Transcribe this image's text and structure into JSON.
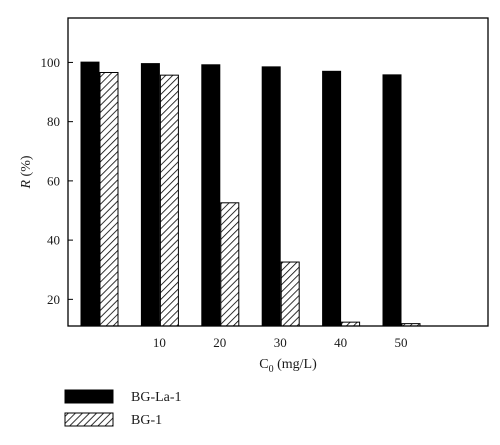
{
  "chart_data": {
    "type": "bar",
    "categories": [
      "",
      "10",
      "20",
      "30",
      "40",
      "50"
    ],
    "series": [
      {
        "name": "BG-La-1",
        "values": [
          100.1,
          99.6,
          99.2,
          98.5,
          97.0,
          95.8
        ],
        "color": "#000000",
        "pattern": "solid"
      },
      {
        "name": "BG-1",
        "values": [
          96.6,
          95.7,
          52.6,
          32.6,
          12.3,
          11.8
        ],
        "color": "#ffffff",
        "pattern": "diagonal-hatch"
      }
    ],
    "xlabel": {
      "main": "C",
      "sub": "0",
      "rest": " (mg/L)"
    },
    "ylabel": {
      "italic": "R",
      "rest": " (%)"
    },
    "ylim": [
      11,
      115
    ],
    "yticks": [
      20,
      40,
      60,
      80,
      100
    ],
    "grid": false,
    "legend": {
      "placement": "bottom-left"
    }
  }
}
